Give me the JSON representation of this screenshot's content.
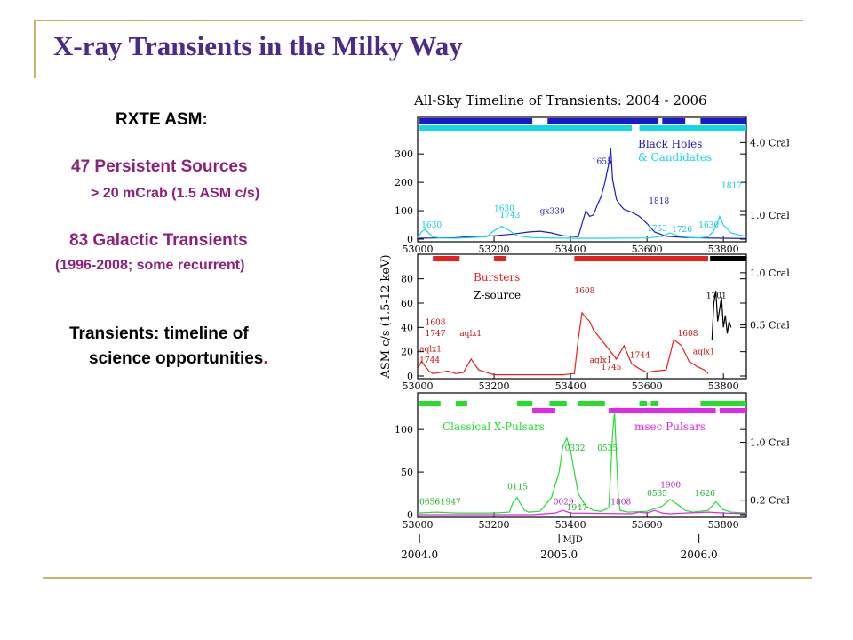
{
  "slide": {
    "title": "X-ray Transients in the Milky Way",
    "rxte_heading": "RXTE ASM:",
    "persistent_line": "47 Persistent Sources",
    "persistent_sub": "> 20 mCrab (1.5 ASM c/s)",
    "galactic_line": "83 Galactic Transients",
    "galactic_sub": "(1996-2008;  some recurrent)",
    "transients_line1": "Transients: timeline of",
    "transients_line2": "science opportunities",
    "transients_end": "."
  },
  "colors": {
    "title": "#4b2a8f",
    "magenta_text": "#8e1f7a",
    "rule": "#c8b46a",
    "blue": "#1a1acc",
    "cyan": "#11d8e8",
    "red": "#e8201c",
    "black": "#000000",
    "green": "#22e02a",
    "magenta": "#e028e8",
    "label_blue": "#1a1acc",
    "label_cyan": "#11c8e0",
    "label_red": "#c81010",
    "label_green": "#11b820",
    "label_magenta": "#c020c8"
  },
  "chart_data": {
    "type": "line",
    "title": "All-Sky Timeline of Transients:  2004 - 2006",
    "ylabel": "ASM c/s (1.5-12 keV)",
    "xlabel": "MJD",
    "xlim": [
      53000,
      53860
    ],
    "x_ticks": [
      53000,
      53200,
      53400,
      53600,
      53800
    ],
    "x_tick_labels": [
      "53000",
      "53200",
      "53400",
      "53600",
      "53800"
    ],
    "year_ticks": [
      53005,
      53370,
      53736
    ],
    "year_labels": [
      "2004.0",
      "2005.0",
      "2006.0"
    ],
    "panels": [
      {
        "name": "top",
        "ylim": [
          0,
          360
        ],
        "y_ticks": [
          0,
          100,
          200,
          300
        ],
        "crab_marks": [
          {
            "value": 340,
            "label": "4.0 Crab"
          },
          {
            "value": 85,
            "label": "1.0 Crab"
          }
        ],
        "legend": [
          {
            "text": "Black Holes",
            "color": "blue"
          },
          {
            "text": "& Candidates",
            "color": "cyan"
          }
        ],
        "series": [
          {
            "color": "blue",
            "x": [
              53000,
              53050,
              53100,
              53150,
              53200,
              53250,
              53290,
              53320,
              53350,
              53380,
              53420,
              53440,
              53450,
              53460,
              53470,
              53480,
              53490,
              53500,
              53505,
              53510,
              53520,
              53530,
              53540,
              53560,
              53580,
              53600,
              53620,
              53650,
              53700,
              53750,
              53800,
              53860
            ],
            "y": [
              3,
              4,
              5,
              10,
              12,
              18,
              25,
              28,
              22,
              12,
              8,
              100,
              80,
              85,
              120,
              150,
              200,
              265,
              320,
              210,
              140,
              120,
              105,
              95,
              80,
              55,
              25,
              10,
              6,
              4,
              3,
              2
            ]
          },
          {
            "color": "cyan",
            "x": [
              53000,
              53010,
              53020,
              53030,
              53040,
              53060,
              53100,
              53180,
              53200,
              53220,
              53240,
              53260,
              53300,
              53400,
              53500,
              53600,
              53640,
              53660,
              53680,
              53720,
              53740,
              53760,
              53775,
              53785,
              53790,
              53800,
              53820,
              53840,
              53860
            ],
            "y": [
              5,
              25,
              35,
              20,
              8,
              4,
              3,
              8,
              30,
              45,
              30,
              12,
              5,
              3,
              3,
              4,
              10,
              22,
              12,
              4,
              5,
              8,
              30,
              60,
              80,
              50,
              22,
              15,
              10
            ]
          }
        ],
        "source_labels": [
          {
            "text": "1630",
            "x": 53010,
            "y": 40,
            "color": "label_cyan"
          },
          {
            "text": "1630",
            "x": 53200,
            "y": 98,
            "color": "label_cyan"
          },
          {
            "text": "1743",
            "x": 53215,
            "y": 75,
            "color": "label_cyan"
          },
          {
            "text": "gx339",
            "x": 53320,
            "y": 90,
            "color": "label_blue"
          },
          {
            "text": "1655",
            "x": 53455,
            "y": 265,
            "color": "label_blue"
          },
          {
            "text": "1818",
            "x": 53605,
            "y": 125,
            "color": "label_blue"
          },
          {
            "text": "1753",
            "x": 53600,
            "y": 28,
            "color": "label_cyan"
          },
          {
            "text": "1726",
            "x": 53665,
            "y": 25,
            "color": "label_cyan"
          },
          {
            "text": "1630",
            "x": 53735,
            "y": 40,
            "color": "label_cyan"
          },
          {
            "text": "1817",
            "x": 53795,
            "y": 180,
            "color": "label_cyan"
          }
        ]
      },
      {
        "name": "middle",
        "ylim": [
          0,
          90
        ],
        "y_ticks": [
          0,
          20,
          40,
          60,
          80
        ],
        "crab_marks": [
          {
            "value": 85,
            "label": "1.0 Crab"
          },
          {
            "value": 42,
            "label": "0.5 Crab"
          }
        ],
        "legend": [
          {
            "text": "Bursters",
            "color": "red"
          },
          {
            "text": "Z-source",
            "color": "black"
          }
        ],
        "series": [
          {
            "color": "red",
            "x": [
              53000,
              53010,
              53020,
              53030,
              53040,
              53060,
              53080,
              53100,
              53120,
              53140,
              53160,
              53180,
              53200,
              53230,
              53260,
              53300,
              53340,
              53380,
              53410,
              53420,
              53430,
              53440,
              53450,
              53460,
              53480,
              53500,
              53520,
              53540,
              53560,
              53580,
              53600,
              53620,
              53650,
              53670,
              53690,
              53710,
              53730,
              53750,
              53760
            ],
            "y": [
              6,
              12,
              8,
              4,
              2,
              3,
              4,
              2,
              3,
              14,
              5,
              3,
              1,
              1,
              1,
              1,
              1,
              1,
              2,
              30,
              52,
              48,
              45,
              38,
              30,
              22,
              14,
              25,
              10,
              6,
              3,
              4,
              5,
              30,
              25,
              12,
              8,
              5,
              2
            ]
          },
          {
            "color": "black",
            "x": [
              53770,
              53775,
              53780,
              53785,
              53790,
              53795,
              53800,
              53805,
              53810,
              53815,
              53820
            ],
            "y": [
              30,
              60,
              70,
              45,
              55,
              65,
              40,
              50,
              35,
              45,
              40
            ]
          }
        ],
        "source_labels": [
          {
            "text": "1608",
            "x": 53020,
            "y": 42,
            "color": "label_red"
          },
          {
            "text": "1747",
            "x": 53020,
            "y": 33,
            "color": "label_red"
          },
          {
            "text": "aqlx1",
            "x": 53005,
            "y": 20,
            "color": "label_red"
          },
          {
            "text": "1744",
            "x": 53005,
            "y": 11,
            "color": "label_red"
          },
          {
            "text": "aqlx1",
            "x": 53110,
            "y": 33,
            "color": "label_red"
          },
          {
            "text": "1608",
            "x": 53410,
            "y": 68,
            "color": "label_red"
          },
          {
            "text": "aqlx1",
            "x": 53450,
            "y": 11,
            "color": "label_red"
          },
          {
            "text": "1745",
            "x": 53480,
            "y": 5,
            "color": "label_red"
          },
          {
            "text": "1744",
            "x": 53555,
            "y": 15,
            "color": "label_red"
          },
          {
            "text": "1608",
            "x": 53680,
            "y": 33,
            "color": "label_red"
          },
          {
            "text": "aqlx1",
            "x": 53720,
            "y": 18,
            "color": "label_red"
          },
          {
            "text": "1701",
            "x": 53755,
            "y": 64,
            "color": "label_black"
          }
        ]
      },
      {
        "name": "bottom",
        "ylim": [
          0,
          120
        ],
        "y_ticks": [
          0,
          50,
          100
        ],
        "crab_marks": [
          {
            "value": 85,
            "label": "1.0 Crab"
          },
          {
            "value": 17,
            "label": "0.2 Crab"
          }
        ],
        "legend": [
          {
            "text": "Classical X-Pulsars",
            "color": "green"
          },
          {
            "text": "msec Pulsars",
            "color": "magenta"
          }
        ],
        "series": [
          {
            "color": "green",
            "x": [
              53000,
              53050,
              53100,
              53150,
              53200,
              53240,
              53250,
              53260,
              53270,
              53280,
              53290,
              53320,
              53350,
              53370,
              53380,
              53390,
              53400,
              53410,
              53420,
              53440,
              53460,
              53480,
              53500,
              53505,
              53510,
              53515,
              53520,
              53525,
              53530,
              53550,
              53600,
              53640,
              53660,
              53680,
              53700,
              53720,
              53760,
              53780,
              53800,
              53820,
              53860
            ],
            "y": [
              2,
              3,
              2,
              2,
              2,
              3,
              15,
              20,
              12,
              5,
              3,
              4,
              20,
              50,
              80,
              90,
              75,
              50,
              25,
              10,
              5,
              4,
              8,
              50,
              95,
              120,
              70,
              20,
              5,
              3,
              4,
              10,
              18,
              12,
              5,
              3,
              5,
              15,
              6,
              3,
              2
            ]
          },
          {
            "color": "magenta",
            "x": [
              53000,
              53300,
              53360,
              53380,
              53400,
              53560,
              53580,
              53600,
              53620,
              53640,
              53660,
              53700,
              53760,
              53800,
              53860
            ],
            "y": [
              0,
              0,
              2,
              5,
              2,
              1,
              3,
              2,
              5,
              2,
              1,
              2,
              3,
              2,
              1
            ]
          }
        ],
        "source_labels": [
          {
            "text": "0656",
            "x": 53005,
            "y": 12,
            "color": "label_green"
          },
          {
            "text": "1947",
            "x": 53060,
            "y": 12,
            "color": "label_green"
          },
          {
            "text": "0115",
            "x": 53235,
            "y": 30,
            "color": "label_green"
          },
          {
            "text": "0332",
            "x": 53385,
            "y": 75,
            "color": "label_green"
          },
          {
            "text": "0029",
            "x": 53355,
            "y": 12,
            "color": "label_magenta"
          },
          {
            "text": "1947",
            "x": 53390,
            "y": 5,
            "color": "label_green"
          },
          {
            "text": "0535",
            "x": 53470,
            "y": 75,
            "color": "label_green"
          },
          {
            "text": "1808",
            "x": 53505,
            "y": 12,
            "color": "label_magenta"
          },
          {
            "text": "0535",
            "x": 53600,
            "y": 22,
            "color": "label_green"
          },
          {
            "text": "1900",
            "x": 53635,
            "y": 32,
            "color": "label_magenta"
          },
          {
            "text": "1626",
            "x": 53725,
            "y": 22,
            "color": "label_green"
          }
        ]
      }
    ],
    "strips": [
      {
        "panel": "top",
        "color": "blue",
        "row": 0,
        "ranges": [
          [
            53005,
            53300
          ],
          [
            53340,
            53630
          ],
          [
            53640,
            53700
          ],
          [
            53740,
            53860
          ]
        ]
      },
      {
        "panel": "top",
        "color": "cyan",
        "row": 1,
        "ranges": [
          [
            53005,
            53560
          ],
          [
            53580,
            53860
          ]
        ]
      },
      {
        "panel": "middle",
        "color": "red",
        "row": 0,
        "ranges": [
          [
            53040,
            53110
          ],
          [
            53200,
            53230
          ],
          [
            53410,
            53760
          ]
        ]
      },
      {
        "panel": "middle",
        "color": "black",
        "row": 0,
        "ranges": [
          [
            53765,
            53860
          ]
        ]
      },
      {
        "panel": "bottom",
        "color": "green",
        "row": 0,
        "ranges": [
          [
            53005,
            53060
          ],
          [
            53100,
            53130
          ],
          [
            53260,
            53300
          ],
          [
            53345,
            53390
          ],
          [
            53420,
            53490
          ],
          [
            53580,
            53600
          ],
          [
            53610,
            53630
          ],
          [
            53740,
            53860
          ]
        ]
      },
      {
        "panel": "bottom",
        "color": "magenta",
        "row": 1,
        "ranges": [
          [
            53300,
            53360
          ],
          [
            53500,
            53780
          ],
          [
            53790,
            53860
          ]
        ]
      }
    ]
  }
}
